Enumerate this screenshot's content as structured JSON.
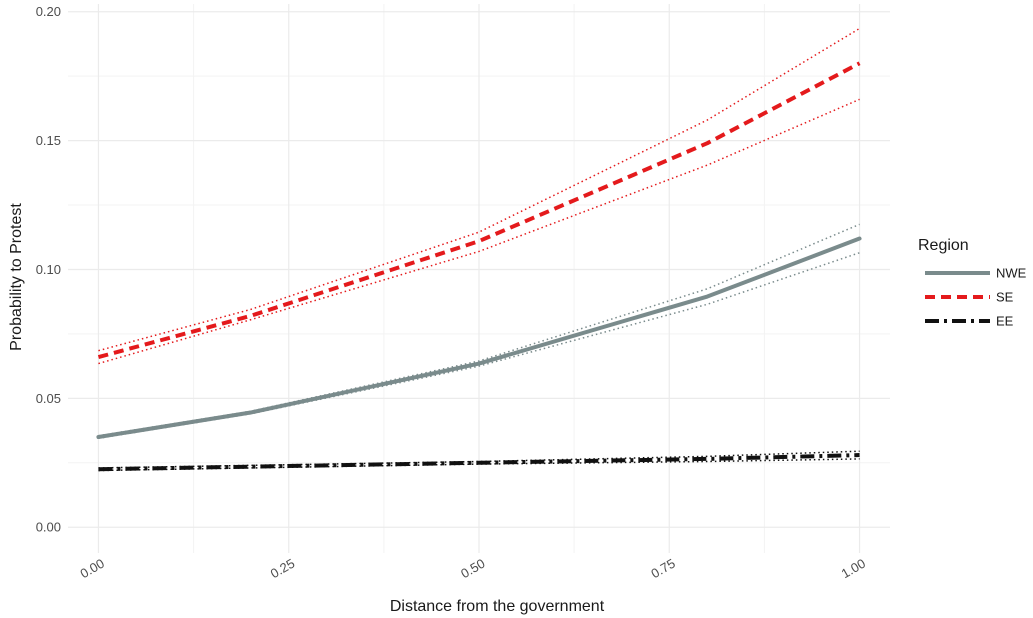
{
  "chart_data": {
    "type": "line",
    "title": "",
    "xlabel": "Distance from the government",
    "ylabel": "Probability to Protest",
    "xlim": [
      -0.04,
      1.04
    ],
    "ylim": [
      -0.01,
      0.203
    ],
    "x_ticks": [
      0.0,
      0.25,
      0.5,
      0.75,
      1.0
    ],
    "x_tick_labels": [
      "0.00",
      "0.25",
      "0.50",
      "0.75",
      "1.00"
    ],
    "y_ticks": [
      0.0,
      0.05,
      0.1,
      0.15,
      0.2
    ],
    "y_tick_labels": [
      "0.00",
      "0.05",
      "0.10",
      "0.15",
      "0.20"
    ],
    "grid": true,
    "legend": {
      "title": "Region",
      "position": "right"
    },
    "x": [
      0.0,
      0.2,
      0.5,
      0.8,
      1.0
    ],
    "series": [
      {
        "name": "NWE",
        "color": "#7a8b8c",
        "line_style": "solid",
        "values": [
          0.035,
          0.0445,
          0.0635,
          0.0895,
          0.112
        ],
        "lower": [
          0.0345,
          0.044,
          0.0625,
          0.0865,
          0.1065
        ],
        "upper": [
          0.0355,
          0.045,
          0.0645,
          0.0925,
          0.1175
        ]
      },
      {
        "name": "SE",
        "color": "#e41a1c",
        "line_style": "dashed",
        "values": [
          0.066,
          0.082,
          0.111,
          0.149,
          0.18
        ],
        "lower": [
          0.0635,
          0.0805,
          0.107,
          0.1405,
          0.166
        ],
        "upper": [
          0.0685,
          0.0845,
          0.1145,
          0.158,
          0.1935
        ]
      },
      {
        "name": "EE",
        "color": "#111111",
        "line_style": "longdash-dot",
        "values": [
          0.0225,
          0.0235,
          0.025,
          0.0265,
          0.028
        ],
        "lower": [
          0.022,
          0.023,
          0.0245,
          0.0255,
          0.0265
        ],
        "upper": [
          0.023,
          0.024,
          0.0255,
          0.0275,
          0.0295
        ]
      }
    ]
  },
  "colors": {
    "background": "#ffffff",
    "grid_major": "#ebebeb",
    "grid_minor": "#f3f3f3"
  }
}
